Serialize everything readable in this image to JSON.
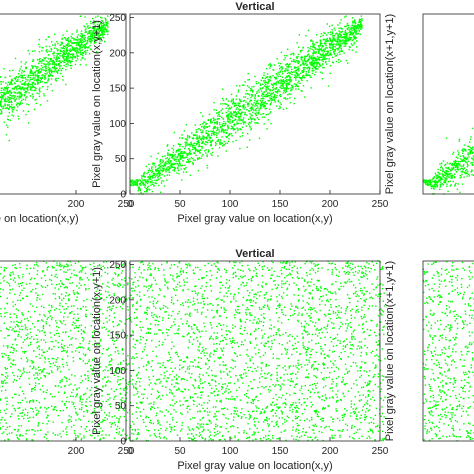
{
  "accent": "#00ff00",
  "chart_data": [
    {
      "id": "top-left",
      "type": "scatter",
      "title": "",
      "xlabel": "Pixel gray value on location(x,y)",
      "ylabel": "",
      "xticks": [
        "200",
        "250"
      ],
      "yticks": [],
      "xlim": [
        0,
        250
      ],
      "ylim": [
        0,
        255
      ],
      "grid": false,
      "pattern": "correlated",
      "n_points": 0
    },
    {
      "id": "top-middle",
      "type": "scatter",
      "title": "Vertical",
      "xlabel": "Pixel gray value on location(x,y)",
      "ylabel": "Pixel gray value on location(x,y+1)",
      "xticks": [
        "0",
        "50",
        "100",
        "150",
        "200",
        "250"
      ],
      "yticks": [
        "0",
        "50",
        "100",
        "150",
        "200",
        "250"
      ],
      "xlim": [
        0,
        250
      ],
      "ylim": [
        0,
        255
      ],
      "grid": false,
      "pattern": "correlated",
      "n_points": 0
    },
    {
      "id": "top-right",
      "type": "scatter",
      "title": "",
      "xlabel": "",
      "ylabel": "Pixel gray value on location(x+1,y+1)",
      "xticks": [],
      "yticks": [],
      "xlim": [
        0,
        250
      ],
      "ylim": [
        0,
        255
      ],
      "grid": false,
      "pattern": "correlated",
      "n_points": 0
    },
    {
      "id": "bottom-left",
      "type": "scatter",
      "title": "",
      "xlabel": "",
      "ylabel": "",
      "xticks": [
        "200",
        "250"
      ],
      "yticks": [],
      "xlim": [
        0,
        250
      ],
      "ylim": [
        0,
        255
      ],
      "grid": false,
      "pattern": "uniform",
      "n_points": 0
    },
    {
      "id": "bottom-middle",
      "type": "scatter",
      "title": "Vertical",
      "xlabel": "Pixel gray value on location(x,y)",
      "ylabel": "Pixel gray value on location(x,y+1)",
      "xticks": [
        "0",
        "50",
        "100",
        "150",
        "200",
        "250"
      ],
      "yticks": [
        "0",
        "50",
        "100",
        "150",
        "200",
        "250"
      ],
      "xlim": [
        0,
        250
      ],
      "ylim": [
        0,
        255
      ],
      "grid": false,
      "pattern": "uniform",
      "n_points": 0
    },
    {
      "id": "bottom-right",
      "type": "scatter",
      "title": "",
      "xlabel": "",
      "ylabel": "Pixel gray value on location(x+1,y+1)",
      "xticks": [],
      "yticks": [],
      "xlim": [
        0,
        250
      ],
      "ylim": [
        0,
        255
      ],
      "grid": false,
      "pattern": "uniform",
      "n_points": 0
    }
  ]
}
